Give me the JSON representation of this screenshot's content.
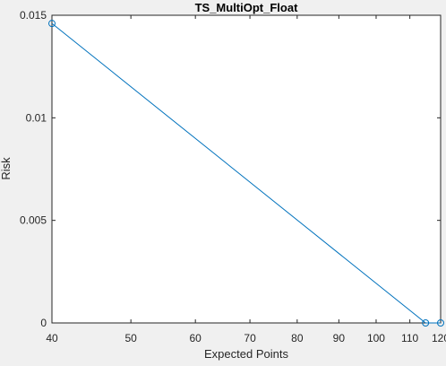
{
  "chart_data": {
    "type": "line",
    "title": "TS_MultiOpt_Float",
    "xlabel": "Expected Points",
    "ylabel": "Risk",
    "x_scale": "log",
    "xlim": [
      40,
      120
    ],
    "ylim": [
      0,
      0.015
    ],
    "x_ticks": [
      40,
      50,
      60,
      70,
      80,
      90,
      100,
      110,
      120
    ],
    "y_ticks": [
      0,
      0.005,
      0.01,
      0.015
    ],
    "y_tick_labels": [
      "0",
      "0.005",
      "0.01",
      "0.015"
    ],
    "grid": false,
    "marker": "circle",
    "color": "#0072bd",
    "series": [
      {
        "x": [
          40,
          115,
          120
        ],
        "y": [
          0.0146,
          0,
          0
        ]
      }
    ]
  }
}
